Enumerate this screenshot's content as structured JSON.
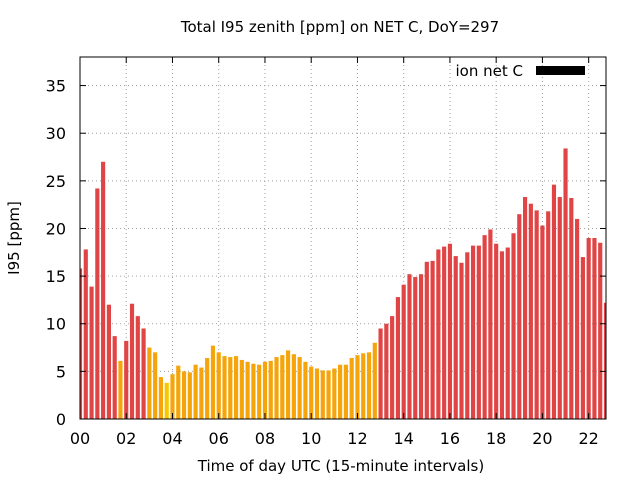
{
  "chart_data": {
    "type": "bar",
    "title": "Total I95 zenith [ppm] on NET C, DoY=297",
    "xlabel": "Time of day UTC (15-minute intervals)",
    "ylabel": "I95 [ppm]",
    "ylim": [
      0,
      38
    ],
    "yticks": [
      0,
      5,
      10,
      15,
      20,
      25,
      30,
      35
    ],
    "xlim": [
      0,
      22.75
    ],
    "xticks": [
      "00",
      "02",
      "04",
      "06",
      "08",
      "10",
      "12",
      "14",
      "16",
      "18",
      "20",
      "22"
    ],
    "grid": true,
    "legend": {
      "position": "top-right",
      "label": "ion net C",
      "color": "#000000"
    },
    "bar_width_hours": 0.18,
    "colors": {
      "red": "#e04444",
      "orange": "#f5a50a",
      "yellow": "#f5c800"
    },
    "bars": [
      {
        "t": 0.0,
        "value": 15.8,
        "color": "red"
      },
      {
        "t": 0.25,
        "value": 17.8,
        "color": "red"
      },
      {
        "t": 0.5,
        "value": 13.9,
        "color": "red"
      },
      {
        "t": 0.75,
        "value": 24.2,
        "color": "red"
      },
      {
        "t": 1.0,
        "value": 27.0,
        "color": "red"
      },
      {
        "t": 1.25,
        "value": 12.0,
        "color": "red"
      },
      {
        "t": 1.5,
        "value": 8.7,
        "color": "red"
      },
      {
        "t": 1.75,
        "value": 6.1,
        "color": "orange"
      },
      {
        "t": 2.0,
        "value": 8.2,
        "color": "red"
      },
      {
        "t": 2.25,
        "value": 12.1,
        "color": "red"
      },
      {
        "t": 2.5,
        "value": 10.8,
        "color": "red"
      },
      {
        "t": 2.75,
        "value": 9.5,
        "color": "red"
      },
      {
        "t": 3.0,
        "value": 7.5,
        "color": "orange"
      },
      {
        "t": 3.25,
        "value": 7.0,
        "color": "orange"
      },
      {
        "t": 3.5,
        "value": 4.4,
        "color": "orange"
      },
      {
        "t": 3.75,
        "value": 3.8,
        "color": "yellow"
      },
      {
        "t": 4.0,
        "value": 4.7,
        "color": "orange"
      },
      {
        "t": 4.25,
        "value": 5.6,
        "color": "orange"
      },
      {
        "t": 4.5,
        "value": 5.0,
        "color": "orange"
      },
      {
        "t": 4.75,
        "value": 4.9,
        "color": "orange"
      },
      {
        "t": 5.0,
        "value": 5.7,
        "color": "orange"
      },
      {
        "t": 5.25,
        "value": 5.4,
        "color": "orange"
      },
      {
        "t": 5.5,
        "value": 6.4,
        "color": "orange"
      },
      {
        "t": 5.75,
        "value": 7.7,
        "color": "orange"
      },
      {
        "t": 6.0,
        "value": 7.0,
        "color": "orange"
      },
      {
        "t": 6.25,
        "value": 6.6,
        "color": "orange"
      },
      {
        "t": 6.5,
        "value": 6.5,
        "color": "orange"
      },
      {
        "t": 6.75,
        "value": 6.6,
        "color": "orange"
      },
      {
        "t": 7.0,
        "value": 6.2,
        "color": "orange"
      },
      {
        "t": 7.25,
        "value": 6.0,
        "color": "orange"
      },
      {
        "t": 7.5,
        "value": 5.8,
        "color": "orange"
      },
      {
        "t": 7.75,
        "value": 5.7,
        "color": "orange"
      },
      {
        "t": 8.0,
        "value": 6.0,
        "color": "orange"
      },
      {
        "t": 8.25,
        "value": 6.1,
        "color": "orange"
      },
      {
        "t": 8.5,
        "value": 6.5,
        "color": "orange"
      },
      {
        "t": 8.75,
        "value": 6.7,
        "color": "orange"
      },
      {
        "t": 9.0,
        "value": 7.2,
        "color": "orange"
      },
      {
        "t": 9.25,
        "value": 6.8,
        "color": "orange"
      },
      {
        "t": 9.5,
        "value": 6.5,
        "color": "orange"
      },
      {
        "t": 9.75,
        "value": 6.0,
        "color": "orange"
      },
      {
        "t": 10.0,
        "value": 5.5,
        "color": "orange"
      },
      {
        "t": 10.25,
        "value": 5.3,
        "color": "orange"
      },
      {
        "t": 10.5,
        "value": 5.1,
        "color": "orange"
      },
      {
        "t": 10.75,
        "value": 5.1,
        "color": "orange"
      },
      {
        "t": 11.0,
        "value": 5.3,
        "color": "orange"
      },
      {
        "t": 11.25,
        "value": 5.7,
        "color": "orange"
      },
      {
        "t": 11.5,
        "value": 5.7,
        "color": "orange"
      },
      {
        "t": 11.75,
        "value": 6.4,
        "color": "orange"
      },
      {
        "t": 12.0,
        "value": 6.7,
        "color": "orange"
      },
      {
        "t": 12.25,
        "value": 6.9,
        "color": "orange"
      },
      {
        "t": 12.5,
        "value": 7.0,
        "color": "orange"
      },
      {
        "t": 12.75,
        "value": 8.0,
        "color": "orange"
      },
      {
        "t": 13.0,
        "value": 9.5,
        "color": "red"
      },
      {
        "t": 13.25,
        "value": 10.0,
        "color": "red"
      },
      {
        "t": 13.5,
        "value": 10.8,
        "color": "red"
      },
      {
        "t": 13.75,
        "value": 12.8,
        "color": "red"
      },
      {
        "t": 14.0,
        "value": 14.1,
        "color": "red"
      },
      {
        "t": 14.25,
        "value": 15.2,
        "color": "red"
      },
      {
        "t": 14.5,
        "value": 14.9,
        "color": "red"
      },
      {
        "t": 14.75,
        "value": 15.2,
        "color": "red"
      },
      {
        "t": 15.0,
        "value": 16.5,
        "color": "red"
      },
      {
        "t": 15.25,
        "value": 16.6,
        "color": "red"
      },
      {
        "t": 15.5,
        "value": 17.8,
        "color": "red"
      },
      {
        "t": 15.75,
        "value": 18.1,
        "color": "red"
      },
      {
        "t": 16.0,
        "value": 18.4,
        "color": "red"
      },
      {
        "t": 16.25,
        "value": 17.1,
        "color": "red"
      },
      {
        "t": 16.5,
        "value": 16.4,
        "color": "red"
      },
      {
        "t": 16.75,
        "value": 17.5,
        "color": "red"
      },
      {
        "t": 17.0,
        "value": 18.2,
        "color": "red"
      },
      {
        "t": 17.25,
        "value": 18.2,
        "color": "red"
      },
      {
        "t": 17.5,
        "value": 19.3,
        "color": "red"
      },
      {
        "t": 17.75,
        "value": 19.9,
        "color": "red"
      },
      {
        "t": 18.0,
        "value": 18.4,
        "color": "red"
      },
      {
        "t": 18.25,
        "value": 17.6,
        "color": "red"
      },
      {
        "t": 18.5,
        "value": 18.0,
        "color": "red"
      },
      {
        "t": 18.75,
        "value": 19.5,
        "color": "red"
      },
      {
        "t": 19.0,
        "value": 21.5,
        "color": "red"
      },
      {
        "t": 19.25,
        "value": 23.3,
        "color": "red"
      },
      {
        "t": 19.5,
        "value": 22.6,
        "color": "red"
      },
      {
        "t": 19.75,
        "value": 21.9,
        "color": "red"
      },
      {
        "t": 20.0,
        "value": 20.3,
        "color": "red"
      },
      {
        "t": 20.25,
        "value": 21.8,
        "color": "red"
      },
      {
        "t": 20.5,
        "value": 24.6,
        "color": "red"
      },
      {
        "t": 20.75,
        "value": 23.3,
        "color": "red"
      },
      {
        "t": 21.0,
        "value": 28.4,
        "color": "red"
      },
      {
        "t": 21.25,
        "value": 23.2,
        "color": "red"
      },
      {
        "t": 21.5,
        "value": 21.0,
        "color": "red"
      },
      {
        "t": 21.75,
        "value": 17.0,
        "color": "red"
      },
      {
        "t": 22.0,
        "value": 19.0,
        "color": "red"
      },
      {
        "t": 22.25,
        "value": 19.0,
        "color": "red"
      },
      {
        "t": 22.5,
        "value": 18.5,
        "color": "red"
      },
      {
        "t": 22.75,
        "value": 12.2,
        "color": "red"
      }
    ]
  }
}
